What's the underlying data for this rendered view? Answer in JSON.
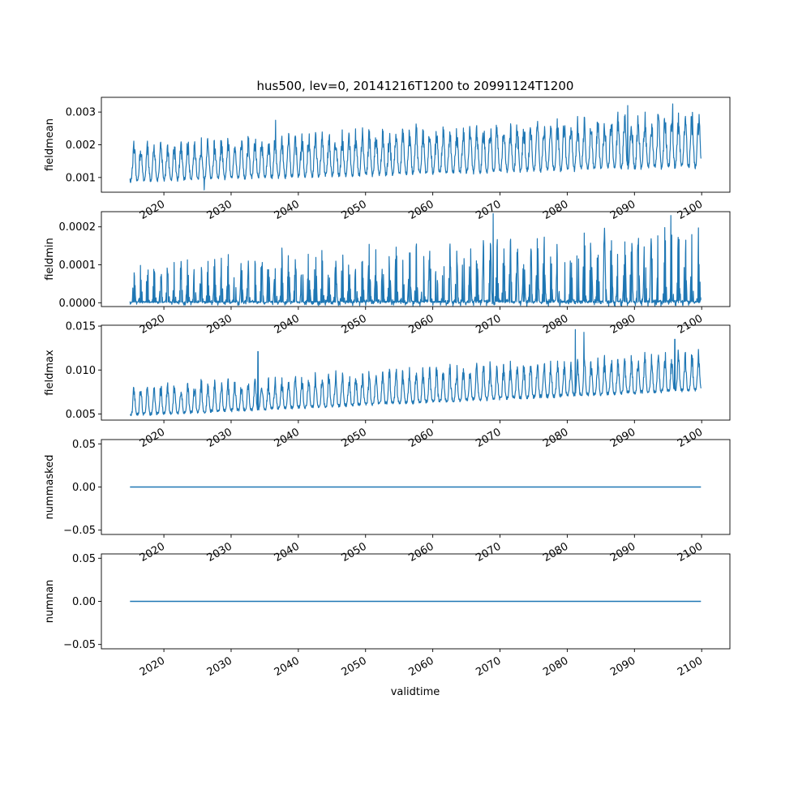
{
  "figure": {
    "title": "hus500, lev=0, 20141216T1200 to 20991124T1200",
    "xlabel": "validtime"
  },
  "colors": {
    "series": "#1f77b4",
    "axes": "#000000",
    "background": "#ffffff"
  },
  "chart_data": [
    {
      "type": "line",
      "ylabel": "fieldmean",
      "xlim": [
        2010.7,
        2104.2
      ],
      "ylim": [
        0.00055,
        0.00345
      ],
      "x_ticks": [
        2020,
        2030,
        2040,
        2050,
        2060,
        2070,
        2080,
        2090,
        2100
      ],
      "y_ticks": [
        0.001,
        0.002,
        0.003
      ],
      "y_tick_labels": [
        "0.001",
        "0.002",
        "0.003"
      ],
      "grid": false,
      "series": [
        {
          "x_range": [
            "20141216T1200",
            "20991124T1200"
          ],
          "seasonal_min": [
            0.0009,
            0.00135
          ],
          "seasonal_max": [
            0.0021,
            0.0031
          ],
          "notable_peaks": [
            [
              2036.6,
              0.00275
            ],
            [
              2089.0,
              0.0032
            ],
            [
              2095.7,
              0.00325
            ]
          ],
          "notable_troughs": [
            [
              2026.0,
              0.00062
            ]
          ]
        }
      ]
    },
    {
      "type": "line",
      "ylabel": "fieldmin",
      "xlim": [
        2010.7,
        2104.2
      ],
      "ylim": [
        -1e-05,
        0.00024
      ],
      "x_ticks": [
        2020,
        2030,
        2040,
        2050,
        2060,
        2070,
        2080,
        2090,
        2100
      ],
      "y_ticks": [
        0.0,
        0.0001,
        0.0002
      ],
      "y_tick_labels": [
        "0.0000",
        "0.0001",
        "0.0002"
      ],
      "grid": false,
      "series": [
        {
          "x_range": [
            "20141216T1200",
            "20991124T1200"
          ],
          "seasonal_min": [
            0.0,
            0.0
          ],
          "seasonal_max": [
            0.00011,
            0.00022
          ],
          "notable_peaks": [
            [
              2069.0,
              0.000235
            ],
            [
              2095.4,
              0.00023
            ]
          ]
        }
      ]
    },
    {
      "type": "line",
      "ylabel": "fieldmax",
      "xlim": [
        2010.7,
        2104.2
      ],
      "ylim": [
        0.0043,
        0.0151
      ],
      "x_ticks": [
        2020,
        2030,
        2040,
        2050,
        2060,
        2070,
        2080,
        2090,
        2100
      ],
      "y_ticks": [
        0.005,
        0.01,
        0.015
      ],
      "y_tick_labels": [
        "0.005",
        "0.010",
        "0.015"
      ],
      "grid": false,
      "series": [
        {
          "x_range": [
            "20141216T1200",
            "20991124T1200"
          ],
          "seasonal_min": [
            0.0049,
            0.0078
          ],
          "seasonal_max": [
            0.0085,
            0.0125
          ],
          "notable_peaks": [
            [
              2034.0,
              0.0121
            ],
            [
              2081.2,
              0.0146
            ],
            [
              2082.5,
              0.0143
            ],
            [
              2096.0,
              0.0135
            ]
          ]
        }
      ]
    },
    {
      "type": "line",
      "ylabel": "nummasked",
      "xlim": [
        2010.7,
        2104.2
      ],
      "ylim": [
        -0.055,
        0.055
      ],
      "x_ticks": [
        2020,
        2030,
        2040,
        2050,
        2060,
        2070,
        2080,
        2090,
        2100
      ],
      "y_ticks": [
        -0.05,
        0.0,
        0.05
      ],
      "y_tick_labels": [
        "−0.05",
        "0.00",
        "0.05"
      ],
      "grid": false,
      "series": [
        {
          "x_range": [
            "20141216T1200",
            "20991124T1200"
          ],
          "constant": 0.0
        }
      ]
    },
    {
      "type": "line",
      "ylabel": "numnan",
      "xlim": [
        2010.7,
        2104.2
      ],
      "ylim": [
        -0.055,
        0.055
      ],
      "x_ticks": [
        2020,
        2030,
        2040,
        2050,
        2060,
        2070,
        2080,
        2090,
        2100
      ],
      "y_ticks": [
        -0.05,
        0.0,
        0.05
      ],
      "y_tick_labels": [
        "−0.05",
        "0.00",
        "0.05"
      ],
      "grid": false,
      "series": [
        {
          "x_range": [
            "20141216T1200",
            "20991124T1200"
          ],
          "constant": 0.0
        }
      ]
    }
  ]
}
